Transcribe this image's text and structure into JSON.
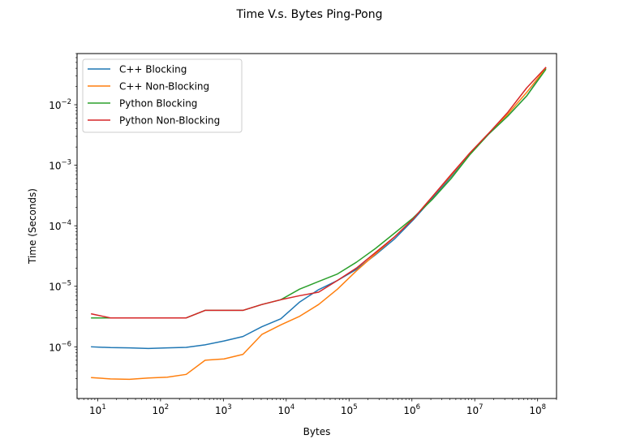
{
  "chart_data": {
    "type": "line",
    "title": "Time V.s. Bytes Ping-Pong",
    "xlabel": "Bytes",
    "ylabel": "Time (Seconds)",
    "xscale": "log",
    "yscale": "log",
    "xlim": [
      4.7,
      200000000
    ],
    "ylim": [
      1.4e-07,
      0.07
    ],
    "grid": false,
    "legend_loc": "upper left",
    "x_ticks": [
      {
        "value": 10,
        "base": "10",
        "exp": "1"
      },
      {
        "value": 100,
        "base": "10",
        "exp": "2"
      },
      {
        "value": 1000,
        "base": "10",
        "exp": "3"
      },
      {
        "value": 10000,
        "base": "10",
        "exp": "4"
      },
      {
        "value": 100000,
        "base": "10",
        "exp": "5"
      },
      {
        "value": 1000000,
        "base": "10",
        "exp": "6"
      },
      {
        "value": 10000000,
        "base": "10",
        "exp": "7"
      },
      {
        "value": 100000000,
        "base": "10",
        "exp": "8"
      }
    ],
    "y_ticks": [
      {
        "value": 1e-06,
        "base": "10",
        "exp": "−6"
      },
      {
        "value": 1e-05,
        "base": "10",
        "exp": "−5"
      },
      {
        "value": 0.0001,
        "base": "10",
        "exp": "−4"
      },
      {
        "value": 0.001,
        "base": "10",
        "exp": "−3"
      },
      {
        "value": 0.01,
        "base": "10",
        "exp": "−2"
      }
    ],
    "x": [
      8,
      16,
      32,
      64,
      128,
      256,
      512,
      1024,
      2048,
      4096,
      8192,
      16384,
      32768,
      65536,
      131072,
      262144,
      524288,
      1048576,
      2097152,
      4194304,
      8388608,
      16777216,
      33554432,
      67108864,
      134217728
    ],
    "series": [
      {
        "name": "C++ Blocking",
        "color": "#1f77b4",
        "values": [
          1e-06,
          9.7e-07,
          9.6e-07,
          9.4e-07,
          9.6e-07,
          9.8e-07,
          1.08e-06,
          1.25e-06,
          1.48e-06,
          2.15e-06,
          2.9e-06,
          5.5e-06,
          8.8e-06,
          1.25e-05,
          1.9e-05,
          3.3e-05,
          6e-05,
          0.000125,
          0.00028,
          0.00065,
          0.00155,
          0.0033,
          0.0065,
          0.014,
          0.04
        ]
      },
      {
        "name": "C++ Non-Blocking",
        "color": "#ff7f0e",
        "values": [
          3.1e-07,
          2.95e-07,
          2.9e-07,
          3.05e-07,
          3.15e-07,
          3.5e-07,
          6e-07,
          6.3e-07,
          7.5e-07,
          1.6e-06,
          2.3e-06,
          3.2e-06,
          5e-06,
          9e-06,
          1.8e-05,
          3.4e-05,
          6.5e-05,
          0.00013,
          0.0003,
          0.00068,
          0.0016,
          0.0034,
          0.007,
          0.016,
          0.04
        ]
      },
      {
        "name": "Python Blocking",
        "color": "#2ca02c",
        "values": [
          3e-06,
          3e-06,
          3e-06,
          3e-06,
          3e-06,
          3e-06,
          4e-06,
          4e-06,
          4e-06,
          5e-06,
          6e-06,
          9e-06,
          1.2e-05,
          1.6e-05,
          2.5e-05,
          4.2e-05,
          7.5e-05,
          0.000135,
          0.00027,
          0.0006,
          0.0015,
          0.0033,
          0.0065,
          0.014,
          0.038
        ]
      },
      {
        "name": "Python Non-Blocking",
        "color": "#d62728",
        "values": [
          3.5e-06,
          3e-06,
          3e-06,
          3e-06,
          3e-06,
          3e-06,
          4e-06,
          4e-06,
          4e-06,
          5e-06,
          6e-06,
          7e-06,
          8e-06,
          1.25e-05,
          2e-05,
          3.6e-05,
          6.5e-05,
          0.00013,
          0.0003,
          0.0007,
          0.0016,
          0.0034,
          0.0075,
          0.019,
          0.041
        ]
      }
    ]
  }
}
